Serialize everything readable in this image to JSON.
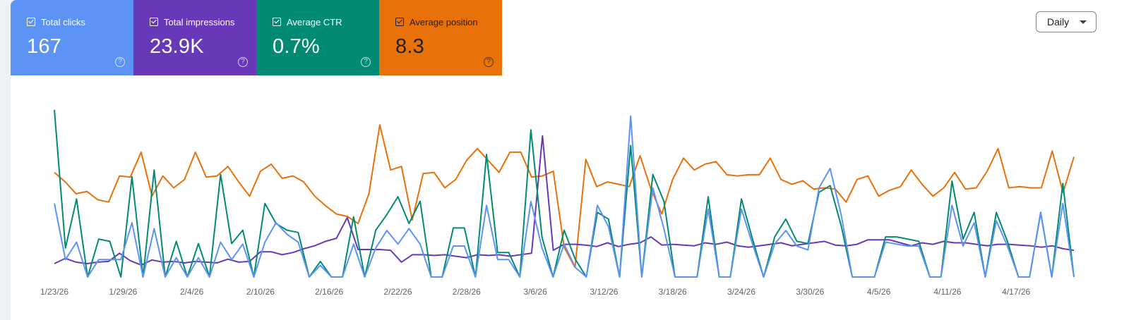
{
  "metrics": [
    {
      "label": "Total clicks",
      "value": "167",
      "help": "?",
      "color": "#5d93f5"
    },
    {
      "label": "Total impressions",
      "value": "23.9K",
      "help": "?",
      "color": "#6739b8"
    },
    {
      "label": "Average CTR",
      "value": "0.7%",
      "help": "?",
      "color": "#028a73"
    },
    {
      "label": "Average position",
      "value": "8.3",
      "help": "?",
      "color": "#e8710a"
    }
  ],
  "period_select": {
    "value": "Daily"
  },
  "chart_data": {
    "type": "line",
    "x_tick_labels": [
      "1/23/26",
      "1/29/26",
      "2/4/26",
      "2/10/26",
      "2/16/26",
      "2/22/26",
      "2/28/26",
      "3/6/26",
      "3/12/26",
      "3/18/26",
      "3/24/26",
      "3/30/26",
      "4/5/26",
      "4/11/26",
      "4/17/26"
    ],
    "series": [
      {
        "name": "Average position",
        "color": "#e8710a",
        "values": [
          8.8,
          8,
          7,
          7.2,
          6.5,
          6.3,
          8.5,
          8.4,
          10.5,
          6.8,
          8.5,
          7.5,
          8.2,
          10.5,
          8.4,
          8.5,
          9.3,
          8,
          6.8,
          8.9,
          9.5,
          8.3,
          8.5,
          8,
          6.8,
          6,
          5.3,
          5.1,
          4.5,
          7,
          12.8,
          9,
          9.3,
          4.8,
          8.7,
          8.8,
          7.5,
          8.2,
          9.8,
          10.8,
          9.8,
          8.8,
          10.5,
          10.5,
          8.4,
          8.5,
          8.9,
          2.5,
          0.8,
          9.9,
          7.6,
          8,
          7.8,
          7.6,
          10.2,
          7.4,
          5.3,
          8.2,
          10,
          9,
          9.5,
          9.7,
          8.6,
          8.5,
          8.6,
          8.6,
          10,
          8.2,
          7.8,
          8.1,
          7.4,
          7.5,
          7.4,
          6.3,
          8.2,
          8.5,
          6.8,
          7.3,
          7.6,
          9,
          7.8,
          6.8,
          7.5,
          8.8,
          7.4,
          7.5,
          8.9,
          10.8,
          7.5,
          7.6,
          7.5,
          7.5,
          10.6,
          7.1,
          10.1
        ],
        "ylim": [
          0,
          15
        ]
      },
      {
        "name": "Total impressions",
        "color": "#6739b8",
        "values": [
          180,
          250,
          200,
          180,
          200,
          210,
          320,
          220,
          160,
          230,
          200,
          210,
          190,
          210,
          200,
          190,
          240,
          200,
          210,
          340,
          340,
          300,
          330,
          380,
          420,
          480,
          520,
          800,
          370,
          370,
          370,
          360,
          200,
          300,
          300,
          290,
          300,
          280,
          260,
          300,
          290,
          300,
          280,
          300,
          320,
          1900,
          360,
          440,
          440,
          430,
          410,
          460,
          410,
          440,
          460,
          540,
          430,
          440,
          430,
          420,
          460,
          440,
          470,
          420,
          400,
          420,
          440,
          460,
          420,
          440,
          460,
          480,
          430,
          420,
          440,
          500,
          500,
          500,
          460,
          420,
          460,
          440,
          480,
          460,
          460,
          440,
          420,
          440,
          440,
          430,
          420,
          400,
          420,
          380,
          360
        ],
        "ylim": [
          0,
          2400
        ]
      },
      {
        "name": "Average CTR",
        "color": "#028a73",
        "values": [
          7.5,
          1.3,
          3.5,
          0,
          1.7,
          1.6,
          0,
          4.5,
          0,
          4.8,
          0,
          1.6,
          0,
          1.5,
          0,
          4.6,
          1.5,
          2.1,
          0,
          3.3,
          2.4,
          2.1,
          2,
          0,
          0.7,
          0,
          0,
          2.7,
          0,
          2.1,
          2.8,
          3.6,
          2.4,
          3.4,
          0,
          0,
          2.2,
          2.2,
          0,
          5.5,
          1.1,
          1.1,
          0,
          6.6,
          1.8,
          0,
          2.1,
          0.8,
          0,
          2.9,
          2.6,
          0,
          5.9,
          0,
          4.6,
          3.4,
          0,
          0,
          0,
          3.6,
          0,
          0,
          3.5,
          1.7,
          0,
          1.8,
          2.6,
          1.6,
          1.5,
          3.8,
          4.1,
          2.3,
          0,
          0,
          0,
          1.8,
          1.8,
          1.7,
          1.6,
          0,
          0,
          4.3,
          1.7,
          2.9,
          0,
          2.9,
          1.6,
          0,
          0,
          2.9,
          0,
          4.2,
          0
        ],
        "ylim": [
          0,
          8
        ]
      },
      {
        "name": "Total clicks",
        "color": "#5d93f5",
        "values": [
          3.8,
          0.9,
          1.8,
          0,
          0.9,
          0.9,
          0.9,
          2.8,
          0,
          2.5,
          0,
          1,
          0,
          1,
          0,
          1.8,
          0.9,
          1.7,
          0,
          1.8,
          2.8,
          2.2,
          1.8,
          0,
          0.6,
          0,
          0,
          1.7,
          0,
          1.5,
          2.4,
          1.7,
          2.5,
          1.7,
          0,
          0,
          1.6,
          1.6,
          0,
          3.7,
          0.9,
          0.9,
          0,
          3.9,
          1.5,
          0,
          1.7,
          0.5,
          0,
          3.7,
          2.6,
          0,
          8.3,
          0,
          4.6,
          2.5,
          0,
          0,
          0,
          3.5,
          0,
          0,
          3.5,
          1.7,
          0,
          1.7,
          2.4,
          1.6,
          1.4,
          4.6,
          5.6,
          3.2,
          0,
          0,
          0,
          1.8,
          1.7,
          1.6,
          1.6,
          0,
          0,
          3.7,
          1.6,
          2.8,
          0,
          2.9,
          1.6,
          0,
          0,
          3.3,
          0,
          3.8,
          0
        ],
        "ylim": [
          0,
          9.2
        ]
      }
    ],
    "grid": false,
    "legend": "none"
  }
}
